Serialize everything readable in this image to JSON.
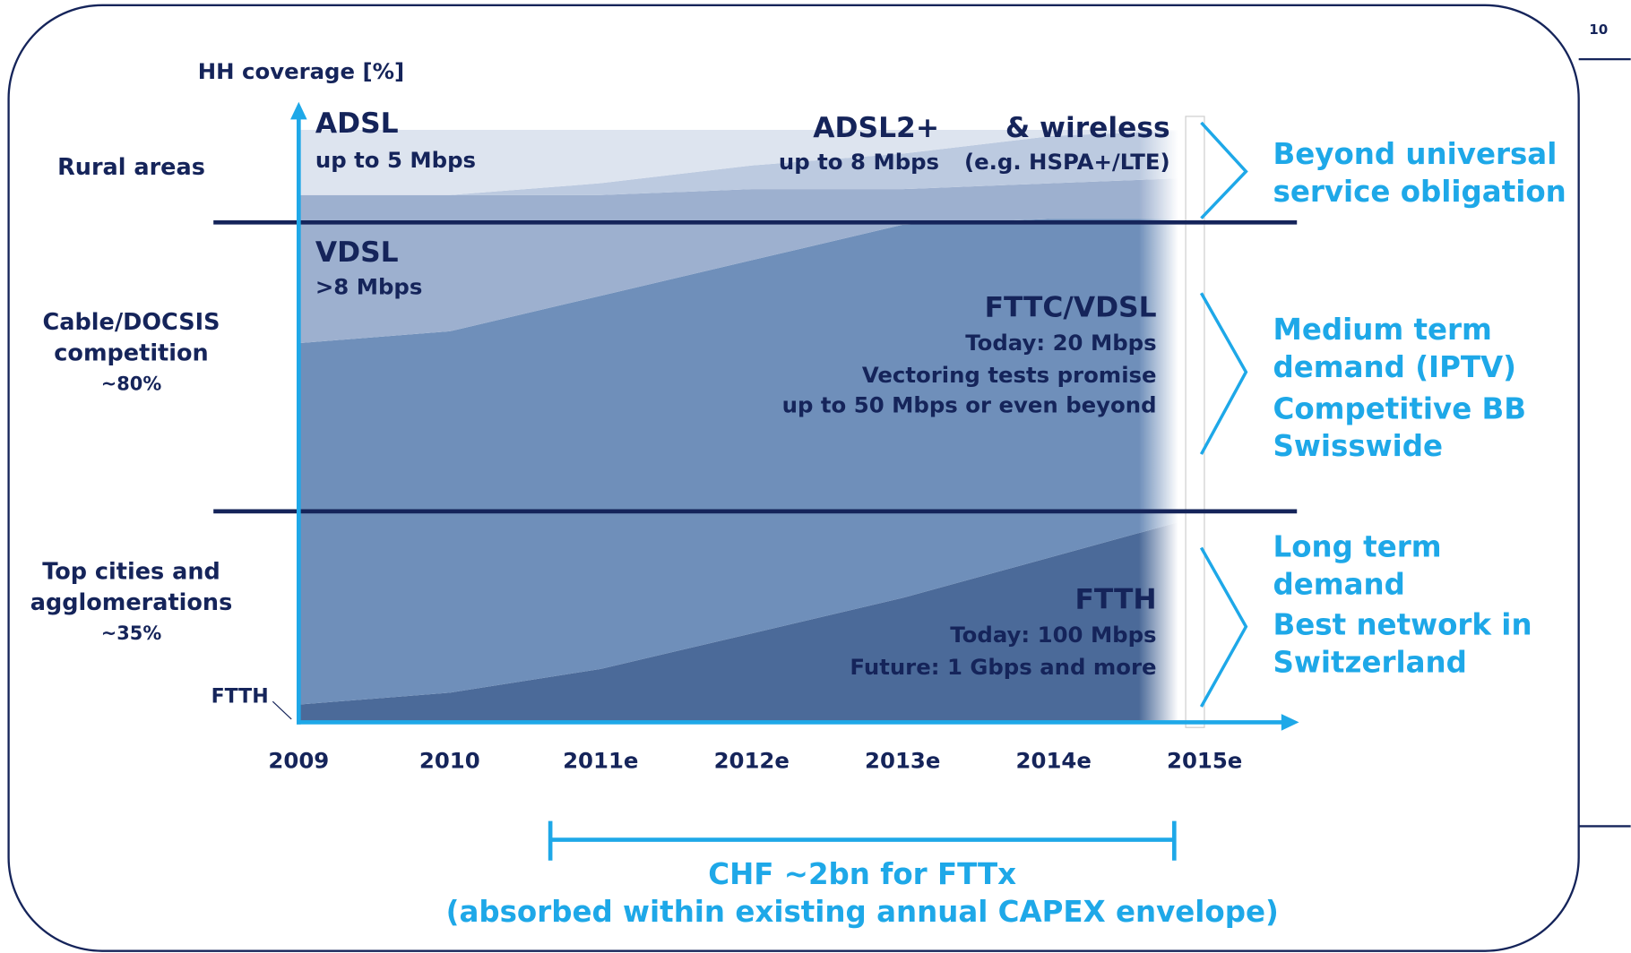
{
  "page": {
    "number": "10"
  },
  "chart_data": {
    "type": "area",
    "y_label": "HH coverage [%]",
    "categories": [
      "2009",
      "2010",
      "2011e",
      "2012e",
      "2013e",
      "2014e",
      "2015e"
    ],
    "ylim": [
      0,
      100
    ],
    "series": [
      {
        "name": "FTTH",
        "color": "#4b6a99",
        "values": [
          3,
          5,
          9,
          15,
          21,
          28,
          35
        ]
      },
      {
        "name": "FTTC/VDSL",
        "color": "#6f8fba",
        "values": [
          61,
          61,
          63,
          63,
          63,
          57,
          50
        ]
      },
      {
        "name": "VDSL",
        "color": "#9db0cf",
        "values": [
          25,
          23,
          17,
          12,
          6,
          6,
          7
        ]
      },
      {
        "name": "ADSL2+",
        "color": "#bccae0",
        "values": [
          0,
          0,
          2,
          4,
          6,
          8,
          8
        ]
      },
      {
        "name": "ADSL",
        "color": "#dde4ef",
        "values": [
          11,
          11,
          9,
          6,
          4,
          1,
          0
        ]
      }
    ],
    "series_notes": [
      [
        "Today: 100 Mbps",
        "Future: 1 Gbps and more"
      ],
      [
        "Today: 20 Mbps",
        "Vectoring tests promise",
        "up to 50 Mbps or even beyond"
      ],
      [
        ">8 Mbps"
      ],
      [
        "up to 8 Mbps"
      ],
      [
        "up to 5 Mbps"
      ]
    ],
    "wireless": {
      "title": "& wireless",
      "note": "(e.g. HSPA+/LTE)"
    },
    "ftth_pointer": "FTTH",
    "regions": [
      {
        "label": [
          "Rural areas"
        ]
      },
      {
        "label": [
          "Cable/DOCSIS",
          "competition"
        ],
        "share": "~80%"
      },
      {
        "label": [
          "Top cities and",
          "agglomerations"
        ],
        "share": "~35%"
      }
    ],
    "right_notes": [
      [
        "Beyond universal",
        "service obligation"
      ],
      [
        "Medium term",
        "demand (IPTV)",
        "Competitive BB",
        "Swisswide"
      ],
      [
        "Long term",
        "demand",
        "Best network in",
        "Switzerland"
      ]
    ],
    "capex": [
      "CHF ~2bn for FTTx",
      "(absorbed within existing annual CAPEX envelope)"
    ]
  }
}
